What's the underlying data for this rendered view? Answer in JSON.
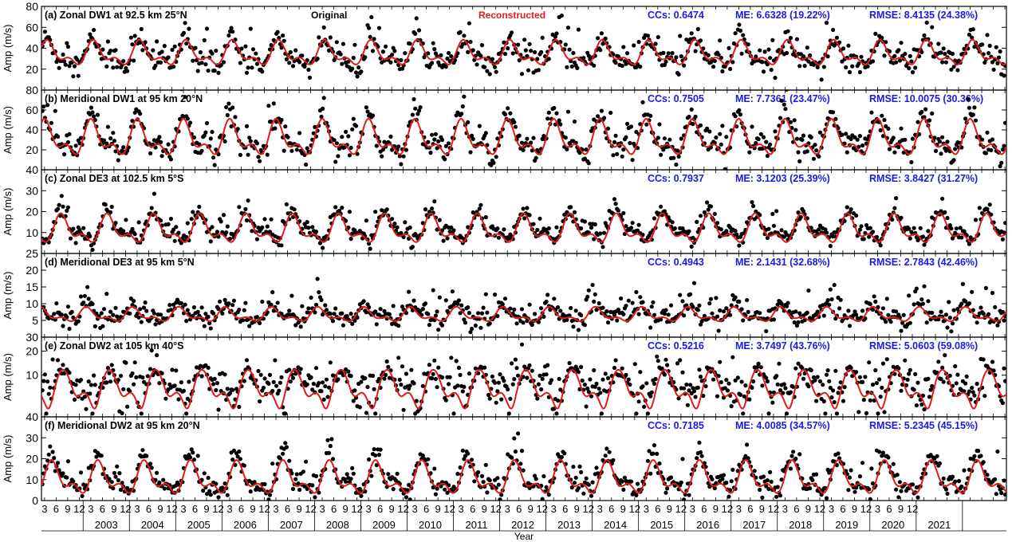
{
  "figure": {
    "legend_original": "Original",
    "legend_reconstructed": "Reconstructed",
    "xlabel": "Year",
    "colors": {
      "original": "#000000",
      "reconstructed": "#e11a1a",
      "stats": "#1a1ae6",
      "axis": "#000000"
    }
  },
  "x_month_ticks": [
    "3",
    "6",
    "9",
    "12",
    "3",
    "6",
    "9",
    "12",
    "3",
    "6",
    "9",
    "12",
    "3",
    "6",
    "9",
    "12",
    "3",
    "6",
    "9",
    "12",
    "3",
    "6",
    "9",
    "12",
    "3",
    "6",
    "9",
    "12",
    "3",
    "6",
    "9",
    "12",
    "3",
    "6",
    "9",
    "12",
    "3",
    "6",
    "9",
    "12",
    "3",
    "6",
    "9",
    "12",
    "3",
    "6",
    "9",
    "12",
    "3",
    "6",
    "9",
    "12",
    "3",
    "6",
    "9",
    "12",
    "3",
    "6",
    "9",
    "12",
    "3",
    "6",
    "9",
    "12",
    "3",
    "6",
    "9",
    "12",
    "3",
    "6",
    "9",
    "12",
    "3",
    "6",
    "9",
    "12"
  ],
  "x_year_labels": [
    "2003",
    "2004",
    "2005",
    "2006",
    "2007",
    "2008",
    "2009",
    "2010",
    "2011",
    "2012",
    "2013",
    "2014",
    "2015",
    "2016",
    "2017",
    "2018",
    "2019",
    "2020",
    "2021"
  ],
  "chart_data": [
    {
      "type": "scatter",
      "panel": "a",
      "title": "(a) Zonal DW1 at 92.5 km 25°N",
      "ylabel": "Amp (m/s)",
      "xlim": [
        2002.1,
        2022.95
      ],
      "ylim": [
        0,
        80
      ],
      "yticks": [
        20,
        40,
        60,
        80
      ],
      "ytick_labels": [
        "20",
        "40",
        "60",
        "80"
      ],
      "stats": {
        "cc": "CCs:  0.6474",
        "me": "ME:  6.6328 (19.22%)",
        "rmse": "RMSE:  8.4135 (24.38%)"
      },
      "series": [
        {
          "name": "Original",
          "style": "scatter",
          "mean": 34,
          "amp": 13,
          "phase": 0.25,
          "noise": 9,
          "dominant": "annual+semiannual"
        },
        {
          "name": "Reconstructed",
          "style": "line",
          "mean": 34,
          "amp": 12,
          "phase": 0.25
        }
      ]
    },
    {
      "type": "scatter",
      "panel": "b",
      "title": "(b) Meridional DW1 at 95 km 20°N",
      "ylabel": "Amp (m/s)",
      "xlim": [
        2002.1,
        2022.95
      ],
      "ylim": [
        0,
        80
      ],
      "yticks": [
        20,
        40,
        60,
        80
      ],
      "ytick_labels": [
        "20",
        "40",
        "60",
        "80"
      ],
      "stats": {
        "cc": "CCs:  0.7505",
        "me": "ME:  7.7361 (23.47%)",
        "rmse": "RMSE: 10.0075 (30.36%)"
      },
      "series": [
        {
          "name": "Original",
          "style": "scatter",
          "mean": 32,
          "amp": 20,
          "phase": 0.2,
          "noise": 10
        },
        {
          "name": "Reconstructed",
          "style": "line",
          "mean": 30,
          "amp": 18,
          "phase": 0.2
        }
      ]
    },
    {
      "type": "scatter",
      "panel": "c",
      "title": "(c) Zonal DE3 at 102.5 km 5°S",
      "ylabel": "Amp (m/s)",
      "xlim": [
        2002.1,
        2022.95
      ],
      "ylim": [
        0,
        40
      ],
      "yticks": [
        10,
        20,
        30,
        40
      ],
      "ytick_labels": [
        "10",
        "20",
        "30",
        "40"
      ],
      "stats": {
        "cc": "CCs:  0.7937",
        "me": "ME:  3.1203 (25.39%)",
        "rmse": "RMSE:  3.8427 (31.27%)"
      },
      "series": [
        {
          "name": "Original",
          "style": "scatter",
          "mean": 12,
          "amp": 7,
          "phase": 0.55,
          "noise": 3
        },
        {
          "name": "Reconstructed",
          "style": "line",
          "mean": 11,
          "amp": 7,
          "phase": 0.55
        }
      ]
    },
    {
      "type": "scatter",
      "panel": "d",
      "title": "(d) Meridional DE3 at 95 km 5°N",
      "ylabel": "Amp (m/s)",
      "xlim": [
        2002.1,
        2022.95
      ],
      "ylim": [
        0,
        25
      ],
      "yticks": [
        5,
        10,
        15,
        20,
        25
      ],
      "ytick_labels": [
        "5",
        "10",
        "15",
        "20",
        "25"
      ],
      "stats": {
        "cc": "CCs:  0.4943",
        "me": "ME:  2.1431 (32.68%)",
        "rmse": "RMSE:  2.7843 (42.46%)"
      },
      "series": [
        {
          "name": "Original",
          "style": "scatter",
          "mean": 7,
          "amp": 2.5,
          "phase": 0.1,
          "noise": 2.5
        },
        {
          "name": "Reconstructed",
          "style": "line",
          "mean": 6.5,
          "amp": 2.2,
          "phase": 0.1
        }
      ]
    },
    {
      "type": "scatter",
      "panel": "e",
      "title": "(e) Zonal DW2 at 105 km 40°S",
      "ylabel": "Amp (m/s)",
      "xlim": [
        2002.1,
        2022.95
      ],
      "ylim": [
        3,
        30
      ],
      "ylog": true,
      "yticks": [
        10,
        20,
        30
      ],
      "ytick_labels": [
        "10",
        "20",
        "30"
      ],
      "stats": {
        "cc": "CCs:  0.5216",
        "me": "ME:  3.7497 (43.76%)",
        "rmse": "RMSE:  5.0603 (59.08%)"
      },
      "series": [
        {
          "name": "Original",
          "style": "scatter",
          "mean": 8,
          "amp": 3,
          "phase": 0.6,
          "noise": 3
        },
        {
          "name": "Reconstructed",
          "style": "line",
          "mean": 7,
          "amp": 4,
          "phase": 0.6
        }
      ]
    },
    {
      "type": "scatter",
      "panel": "f",
      "title": "(f) Meridional DW2 at 95 km 20°N",
      "ylabel": "Amp (m/s)",
      "xlim": [
        2002.1,
        2022.95
      ],
      "ylim": [
        0,
        40
      ],
      "yticks": [
        0,
        10,
        20,
        30,
        40
      ],
      "ytick_labels": [
        "0",
        "10",
        "20",
        "30",
        "40"
      ],
      "stats": {
        "cc": "CCs:  0.7185",
        "me": "ME:  4.0085 (34.57%)",
        "rmse": "RMSE:  5.2345 (45.15%)"
      },
      "series": [
        {
          "name": "Original",
          "style": "scatter",
          "mean": 11,
          "amp": 9,
          "phase": 0.35,
          "noise": 4
        },
        {
          "name": "Reconstructed",
          "style": "line",
          "mean": 10,
          "amp": 8,
          "phase": 0.35
        }
      ]
    }
  ]
}
